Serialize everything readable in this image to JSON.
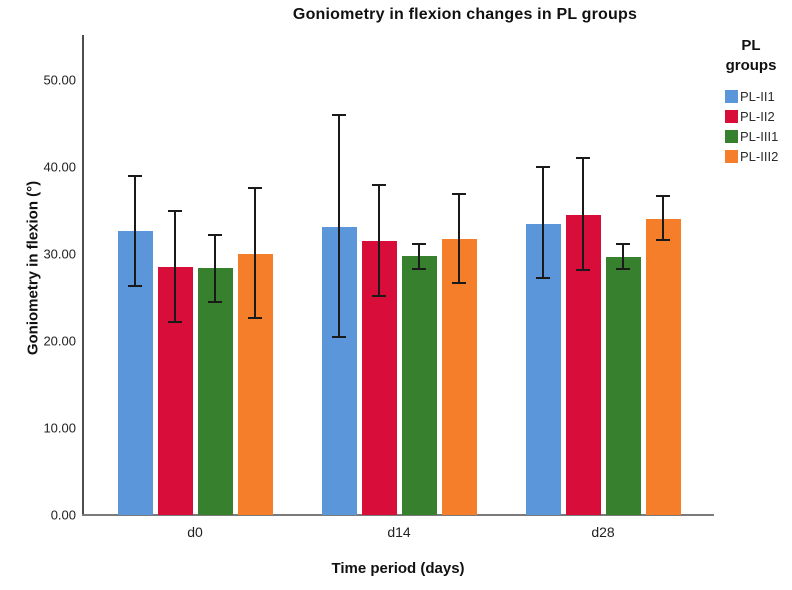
{
  "legend": {
    "title_lines": [
      "PL",
      "groups"
    ]
  },
  "chart_data": {
    "type": "bar",
    "title": "Goniometry in flexion changes in PL groups",
    "xlabel": "Time period (days)",
    "ylabel": "Goniometry in flexion (°)",
    "categories": [
      "d0",
      "d14",
      "d28"
    ],
    "ylim": [
      0,
      55
    ],
    "grid": false,
    "legend_position": "top-right",
    "legend_title": "PL groups",
    "y_ticks": [
      {
        "v": 0,
        "label": "0.00"
      },
      {
        "v": 10,
        "label": "10.00"
      },
      {
        "v": 20,
        "label": "20.00"
      },
      {
        "v": 30,
        "label": "30.00"
      },
      {
        "v": 40,
        "label": "40.00"
      },
      {
        "v": 50,
        "label": "50.00"
      }
    ],
    "error_bars": "95% CI, capped, black",
    "series": [
      {
        "name": "PL-II1",
        "color": "#5B96DB",
        "values": [
          32.6,
          33.1,
          33.4
        ],
        "ci_low": [
          26.3,
          20.5,
          27.2
        ],
        "ci_high": [
          39.0,
          46.0,
          40.0
        ]
      },
      {
        "name": "PL-II2",
        "color": "#D90D3A",
        "values": [
          28.5,
          31.5,
          34.5
        ],
        "ci_low": [
          22.2,
          25.2,
          28.2
        ],
        "ci_high": [
          34.9,
          37.9,
          41.0
        ]
      },
      {
        "name": "PL-III1",
        "color": "#37812E",
        "values": [
          28.4,
          29.8,
          29.7
        ],
        "ci_low": [
          24.5,
          28.3,
          28.3
        ],
        "ci_high": [
          32.2,
          31.1,
          31.1
        ]
      },
      {
        "name": "PL-III2",
        "color": "#F57E2A",
        "values": [
          30.0,
          31.7,
          34.0
        ],
        "ci_low": [
          22.6,
          26.7,
          31.6
        ],
        "ci_high": [
          37.6,
          36.9,
          36.7
        ]
      }
    ]
  }
}
